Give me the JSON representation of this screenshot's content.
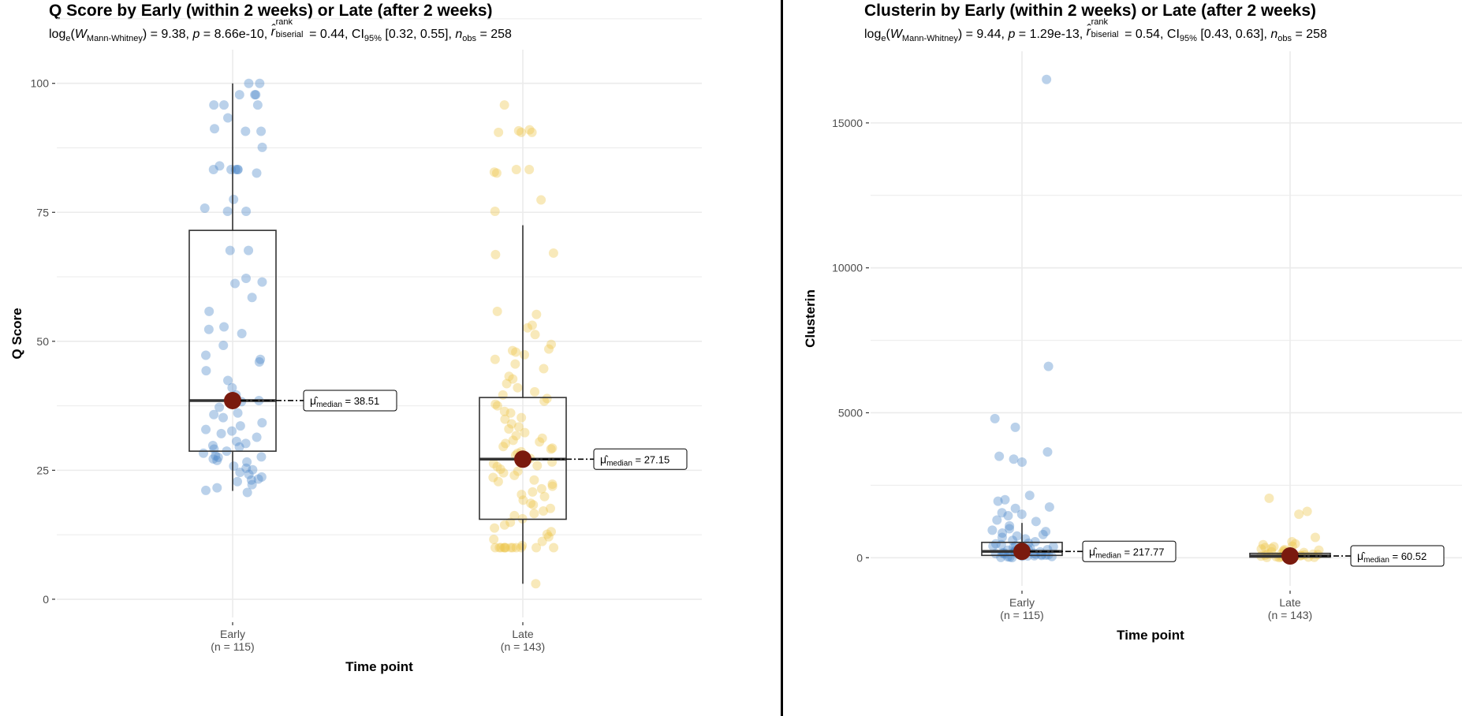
{
  "colors": {
    "early": "#4A86C8",
    "late": "#EDC54A",
    "median_point": "#7A1A0E",
    "grid": "#EBEBEB",
    "box": "#333333",
    "divider": "#000000"
  },
  "chart_data": [
    {
      "type": "boxplot-violin-scatter",
      "title": "Q Score by Early (within 2 weeks) or Late (after 2 weeks)",
      "subtitle": {
        "log_w_label": "log",
        "log_sub": "e",
        "w_label": "W",
        "w_sub": "Mann-Whitney",
        "w_value": "9.38",
        "p_value": "8.66e-10",
        "r_value": "0.44",
        "ci_label": "CI",
        "ci_sub": "95%",
        "ci_value": "[0.32, 0.55]",
        "n_obs": "258",
        "text_w": ") = 9.38, ",
        "text_p": " = 8.66e-10, ",
        "text_r": " = 0.44, ",
        "text_ci": " [0.32, 0.55], ",
        "text_n": " = 258"
      },
      "xlabel": "Time point",
      "ylabel": "Q Score",
      "ylim": [
        -2,
        105
      ],
      "yticks": [
        0,
        25,
        50,
        75,
        100
      ],
      "grid": true,
      "categories": [
        {
          "name": "Early",
          "n_label": "(n = 115)",
          "median": 38.51,
          "q1": 28.7,
          "q3": 71.5,
          "whisker_low": 21,
          "whisker_high": 100,
          "median_label": "38.51"
        },
        {
          "name": "Late",
          "n_label": "(n = 143)",
          "median": 27.15,
          "q1": 15.5,
          "q3": 39.1,
          "whisker_low": 3,
          "whisker_high": 72.5,
          "median_label": "27.15"
        }
      ],
      "points": {
        "Early": [
          100,
          100,
          97.8,
          97.8,
          97.8,
          95.8,
          95.8,
          95.8,
          93.3,
          91.2,
          90.7,
          90.7,
          87.6,
          84,
          83.3,
          83.3,
          83.3,
          83.3,
          83.3,
          82.6,
          77.5,
          75.8,
          75.2,
          75.2,
          67.6,
          67.6,
          62.2,
          61.5,
          61.2,
          58.5,
          55.8,
          52.8,
          52.3,
          51.5,
          49.2,
          47.3,
          46.5,
          46,
          44.3,
          42.4,
          41,
          39.6,
          38.8,
          38.5,
          38.5,
          38.3,
          37.2,
          36.1,
          35.8,
          35.2,
          34.2,
          33.6,
          32.9,
          32.6,
          32.1,
          31.4,
          30.6,
          30.2,
          29.8,
          29.5,
          29.1,
          28.7,
          28.3,
          27.8,
          27.6,
          27.5,
          27.2,
          26.9,
          26.6,
          25.8,
          25.4,
          25.1,
          24.6,
          24.2,
          23.7,
          23.3,
          23.1,
          22.8,
          22.2,
          21.6,
          21.1,
          20.7
        ],
        "Late": [
          95.8,
          91,
          90.8,
          90.5,
          90.5,
          90.5,
          83.3,
          83.3,
          82.8,
          82.6,
          77.4,
          75.2,
          67.1,
          66.8,
          55.8,
          55.2,
          53.1,
          52.6,
          51.3,
          49.4,
          48.5,
          48.2,
          47.9,
          47.4,
          46.5,
          45.6,
          44.7,
          43.2,
          42.7,
          41.8,
          41,
          40.2,
          39.6,
          38.9,
          38.4,
          37.8,
          37.5,
          36.4,
          36.1,
          35.2,
          34.9,
          34,
          33.4,
          33,
          32.3,
          31.7,
          31.2,
          30.8,
          30.5,
          30.2,
          29.6,
          29.3,
          29.1,
          28.6,
          28.3,
          27.9,
          27.3,
          27,
          26.6,
          26.3,
          25.9,
          25.7,
          25.2,
          24.8,
          24.5,
          24,
          23.6,
          23.1,
          22.8,
          22.3,
          21.9,
          21.4,
          20.8,
          20.3,
          19.9,
          19.2,
          18.6,
          18.3,
          17.6,
          17.1,
          16.6,
          16.2,
          15.6,
          14.9,
          14.4,
          13.8,
          13.1,
          12.6,
          12.1,
          11.6,
          11.2,
          10.4,
          10,
          10,
          10,
          10,
          10,
          10,
          10,
          10,
          10,
          10,
          10,
          10,
          3
        ]
      }
    },
    {
      "type": "boxplot-violin-scatter",
      "title": "Clusterin by Early (within 2 weeks) or Late (after 2 weeks)",
      "subtitle": {
        "log_w_label": "log",
        "log_sub": "e",
        "w_label": "W",
        "w_sub": "Mann-Whitney",
        "w_value": "9.44",
        "p_value": "1.29e-13",
        "r_value": "0.54",
        "ci_label": "CI",
        "ci_sub": "95%",
        "ci_value": "[0.43, 0.63]",
        "n_obs": "258",
        "text_w": ") = 9.44, ",
        "text_p": " = 1.29e-13, ",
        "text_r": " = 0.54, ",
        "text_ci": " [0.43, 0.63], ",
        "text_n": " = 258"
      },
      "xlabel": "Time point",
      "ylabel": "Clusterin",
      "ylim": [
        -700,
        17200
      ],
      "yticks": [
        0,
        5000,
        10000,
        15000
      ],
      "grid": true,
      "categories": [
        {
          "name": "Early",
          "n_label": "(n = 115)",
          "median": 217.77,
          "q1": 80,
          "q3": 530,
          "whisker_low": 0,
          "whisker_high": 1200,
          "median_label": "217.77"
        },
        {
          "name": "Late",
          "n_label": "(n = 143)",
          "median": 60.52,
          "q1": 20,
          "q3": 150,
          "whisker_low": 0,
          "whisker_high": 350,
          "median_label": "60.52"
        }
      ],
      "points": {
        "Early": [
          16500,
          6600,
          4800,
          4500,
          3650,
          3500,
          3400,
          3300,
          2150,
          2000,
          1950,
          1750,
          1700,
          1550,
          1500,
          1450,
          1300,
          1250,
          1100,
          1000,
          950,
          900,
          850,
          800,
          750,
          700,
          650,
          600,
          550,
          500,
          480,
          450,
          420,
          400,
          380,
          350,
          330,
          300,
          280,
          260,
          240,
          220,
          210,
          200,
          190,
          180,
          170,
          160,
          150,
          140,
          130,
          120,
          110,
          100,
          90,
          80,
          70,
          60,
          50,
          40,
          30,
          20,
          10,
          5
        ],
        "Late": [
          2050,
          1600,
          1500,
          700,
          550,
          480,
          450,
          400,
          380,
          350,
          320,
          300,
          280,
          260,
          240,
          220,
          200,
          180,
          160,
          150,
          140,
          130,
          120,
          110,
          100,
          90,
          80,
          70,
          60,
          55,
          50,
          45,
          40,
          35,
          30,
          25,
          20,
          15,
          10,
          5
        ]
      }
    }
  ],
  "median_label_prefix": "μ̂",
  "median_label_sub": "median",
  "median_label_eq": " = "
}
